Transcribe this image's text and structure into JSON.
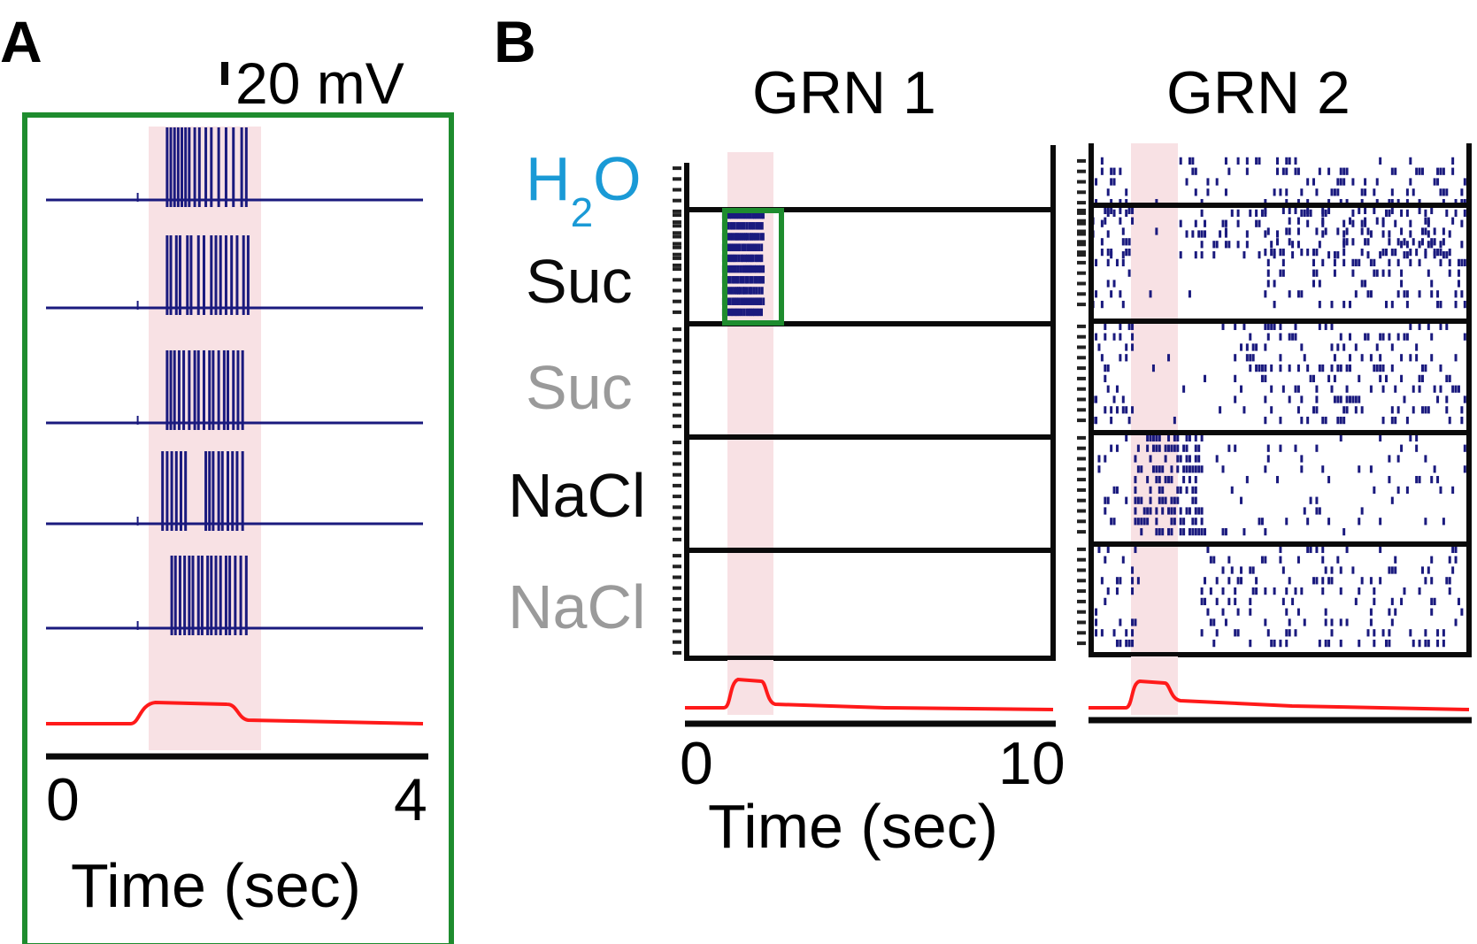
{
  "colors": {
    "spike": "#1a1a7e",
    "stimulus": "#ff1a1a",
    "window": "#f8e1e4",
    "frame": "#0a0a0a",
    "highlight": "#1e8c2e",
    "water": "#1a9ad6",
    "solution_gray": "#9a9a9a"
  },
  "panel_a": {
    "label": "A",
    "scale_bar": "20 mV",
    "x_tick_start": "0",
    "x_tick_end": "4",
    "xlabel": "Time (sec)"
  },
  "panel_b": {
    "label": "B",
    "grn1_title": "GRN 1",
    "grn2_title": "GRN 2",
    "row_labels": {
      "h": "H",
      "sub": "2",
      "o": "O",
      "suc_dark": "Suc",
      "suc_gray": "Suc",
      "nacl_dark": "NaCl",
      "nacl_gray": "NaCl"
    },
    "x_tick_start": "0",
    "x_tick_end": "10",
    "xlabel": "Time (sec)"
  },
  "chart_data": [
    {
      "type": "line",
      "panel": "A",
      "description_level": "voltage traces, 5 sucrose trials of GRN 1 plus stimulus trace",
      "xlim": [
        0,
        4
      ],
      "stimulus_window": [
        0.9,
        2.1
      ],
      "traces": [
        {
          "spike_times": [
            1.22,
            1.26,
            1.3,
            1.34,
            1.38,
            1.42,
            1.46,
            1.52,
            1.57,
            1.64,
            1.7,
            1.78,
            1.86,
            1.94,
            2.03,
            2.08
          ]
        },
        {
          "spike_times": [
            1.22,
            1.26,
            1.32,
            1.36,
            1.44,
            1.48,
            1.56,
            1.62,
            1.7,
            1.75,
            1.8,
            1.86,
            1.92,
            1.98,
            2.05,
            2.1
          ]
        },
        {
          "spike_times": [
            1.22,
            1.26,
            1.3,
            1.35,
            1.4,
            1.46,
            1.52,
            1.56,
            1.62,
            1.68,
            1.72,
            1.78,
            1.84,
            1.88,
            1.94,
            1.99,
            2.04
          ]
        },
        {
          "spike_times": [
            1.17,
            1.22,
            1.27,
            1.32,
            1.37,
            1.42,
            1.64,
            1.68,
            1.72,
            1.78,
            1.82,
            1.88,
            1.93,
            1.98,
            2.04
          ]
        },
        {
          "spike_times": [
            1.27,
            1.31,
            1.36,
            1.41,
            1.46,
            1.5,
            1.56,
            1.6,
            1.66,
            1.7,
            1.75,
            1.8,
            1.86,
            1.9,
            1.96,
            2.02,
            2.08
          ]
        }
      ]
    },
    {
      "type": "scatter",
      "panel": "B",
      "subplot": "GRN 1",
      "xlim": [
        0,
        10
      ],
      "stimulus_window": [
        0.8,
        2.0
      ],
      "rows_per_group": 5,
      "groups": [
        "H2O",
        "Suc",
        "Suc",
        "NaCl",
        "NaCl"
      ],
      "raster_spike_window": [
        1.0,
        2.1
      ]
    },
    {
      "type": "scatter",
      "panel": "B",
      "subplot": "GRN 2",
      "xlim": [
        0,
        10
      ],
      "stimulus_window": [
        0.8,
        2.0
      ],
      "rows_per_group": 5,
      "groups": [
        "H2O",
        "Suc",
        "Suc",
        "NaCl",
        "NaCl"
      ]
    }
  ]
}
